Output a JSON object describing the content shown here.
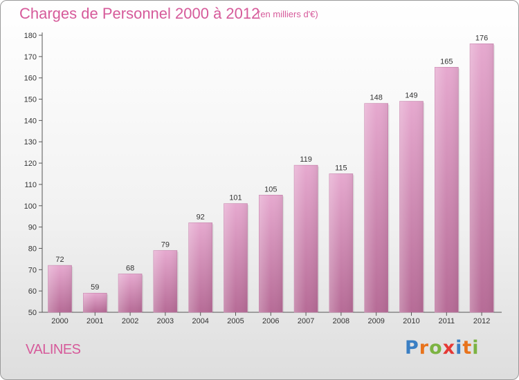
{
  "header": {
    "title": "Charges de Personnel 2000 à 2012",
    "subtitle": "(en milliers d'€)"
  },
  "commune": "VALINES",
  "logo": {
    "text": "Proxiti",
    "letters": [
      "P",
      "r",
      "o",
      "x",
      "i",
      "t",
      "i"
    ],
    "colors": [
      "#3a7fc4",
      "#e8731c",
      "#7cb342",
      "#e53935",
      "#3a7fc4",
      "#e8731c",
      "#7cb342"
    ]
  },
  "colors": {
    "bar": "#d184b4",
    "accent": "#d65a9a"
  },
  "chart_data": {
    "type": "bar",
    "title": "Charges de Personnel 2000 à 2012",
    "subtitle": "(en milliers d'€)",
    "categories": [
      "2000",
      "2001",
      "2002",
      "2003",
      "2004",
      "2005",
      "2006",
      "2007",
      "2008",
      "2009",
      "2010",
      "2011",
      "2012"
    ],
    "values": [
      72,
      59,
      68,
      79,
      92,
      101,
      105,
      119,
      115,
      148,
      149,
      165,
      176
    ],
    "xlabel": "",
    "ylabel": "",
    "ylim": [
      50,
      180
    ],
    "yticks": [
      50,
      60,
      70,
      80,
      90,
      100,
      110,
      120,
      130,
      140,
      150,
      160,
      170,
      180
    ],
    "grid": false,
    "legend": "none"
  }
}
